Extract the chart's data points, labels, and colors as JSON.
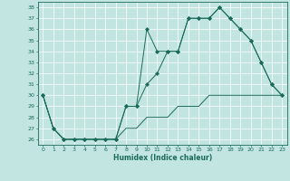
{
  "xlabel": "Humidex (Indice chaleur)",
  "xlim": [
    -0.5,
    23.5
  ],
  "ylim": [
    25.5,
    38.5
  ],
  "yticks": [
    26,
    27,
    28,
    29,
    30,
    31,
    32,
    33,
    34,
    35,
    36,
    37,
    38
  ],
  "xticks": [
    0,
    1,
    2,
    3,
    4,
    5,
    6,
    7,
    8,
    9,
    10,
    11,
    12,
    13,
    14,
    15,
    16,
    17,
    18,
    19,
    20,
    21,
    22,
    23
  ],
  "bg_color": "#c2e5e2",
  "line_color": "#1a6b5a",
  "line1_x": [
    0,
    1,
    2,
    3,
    4,
    5,
    6,
    7,
    8,
    9,
    10,
    11,
    12,
    13,
    14,
    15,
    16,
    17,
    18,
    19,
    20,
    21,
    22,
    23
  ],
  "line1_y": [
    30,
    27,
    26,
    26,
    26,
    26,
    26,
    26,
    29,
    29,
    36,
    34,
    34,
    34,
    37,
    37,
    37,
    38,
    37,
    36,
    35,
    33,
    31,
    30
  ],
  "line2_x": [
    0,
    1,
    2,
    3,
    4,
    5,
    6,
    7,
    8,
    9,
    10,
    11,
    12,
    13,
    14,
    15,
    16,
    17,
    18,
    19,
    20,
    21,
    22,
    23
  ],
  "line2_y": [
    30,
    27,
    26,
    26,
    26,
    26,
    26,
    26,
    29,
    29,
    31,
    32,
    34,
    34,
    37,
    37,
    37,
    38,
    37,
    36,
    35,
    33,
    31,
    30
  ],
  "line3_x": [
    0,
    1,
    2,
    3,
    4,
    5,
    6,
    7,
    8,
    9,
    10,
    11,
    12,
    13,
    14,
    15,
    16,
    17,
    18,
    19,
    20,
    21,
    22,
    23
  ],
  "line3_y": [
    30,
    27,
    26,
    26,
    26,
    26,
    26,
    26,
    27,
    27,
    28,
    28,
    28,
    29,
    29,
    29,
    30,
    30,
    30,
    30,
    30,
    30,
    30,
    30
  ]
}
